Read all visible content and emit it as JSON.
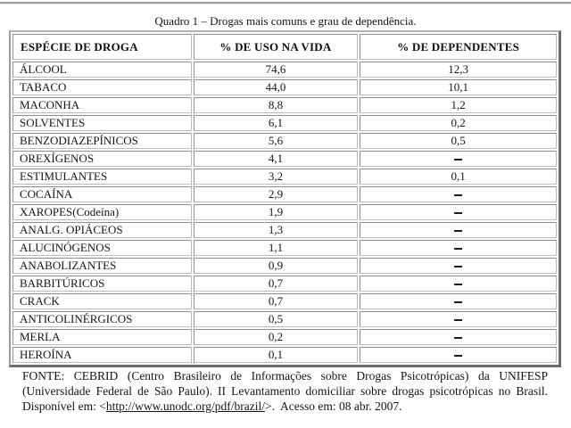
{
  "page": {
    "caption": "Quadro 1 – Drogas mais comuns e grau de dependência."
  },
  "table": {
    "columns": [
      "ESPÉCIE DE DROGA",
      "% DE USO NA VIDA",
      "% DE DEPENDENTES"
    ],
    "rows": [
      {
        "droga": "ÁLCOOL",
        "uso_na_vida": "74,6",
        "dependentes": "12,3"
      },
      {
        "droga": "TABACO",
        "uso_na_vida": "44,0",
        "dependentes": "10,1"
      },
      {
        "droga": "MACONHA",
        "uso_na_vida": "8,8",
        "dependentes": "1,2"
      },
      {
        "droga": "SOLVENTES",
        "uso_na_vida": "6,1",
        "dependentes": "0,2"
      },
      {
        "droga": "BENZODIAZEPÍNICOS",
        "uso_na_vida": "5,6",
        "dependentes": "0,5"
      },
      {
        "droga": "OREXÍGENOS",
        "uso_na_vida": "4,1",
        "dependentes": "_"
      },
      {
        "droga": "ESTIMULANTES",
        "uso_na_vida": "3,2",
        "dependentes": "0,1"
      },
      {
        "droga": "COCAÍNA",
        "uso_na_vida": "2,9",
        "dependentes": "_"
      },
      {
        "droga": "XAROPES(Codeína)",
        "uso_na_vida": "1,9",
        "dependentes": "_"
      },
      {
        "droga": "ANALG. OPIÁCEOS",
        "uso_na_vida": "1,3",
        "dependentes": "_"
      },
      {
        "droga": "ALUCINÓGENOS",
        "uso_na_vida": "1,1",
        "dependentes": "_"
      },
      {
        "droga": "ANABOLIZANTES",
        "uso_na_vida": "0,9",
        "dependentes": "_"
      },
      {
        "droga": "BARBITÚRICOS",
        "uso_na_vida": "0,7",
        "dependentes": "_"
      },
      {
        "droga": "CRACK",
        "uso_na_vida": "0,7",
        "dependentes": "_"
      },
      {
        "droga": "ANTICOLINÉRGICOS",
        "uso_na_vida": "0,5",
        "dependentes": "_"
      },
      {
        "droga": "MERLA",
        "uso_na_vida": "0,2",
        "dependentes": "_"
      },
      {
        "droga": "HEROÍNA",
        "uso_na_vida": "0,1",
        "dependentes": "_"
      }
    ]
  },
  "source_note": {
    "before_link": "FONTE: CEBRID (Centro Brasileiro de Informações sobre Drogas Psicotrópicas) da UNIFESP (Universidade Federal de São Paulo). II Levantamento domiciliar sobre drogas psicotrópicas no Brasil. Disponível em: <",
    "link": "http://www.unodc.org/pdf/brazil/",
    "after_link": ">.  Acesso em: 08 abr. 2007."
  }
}
